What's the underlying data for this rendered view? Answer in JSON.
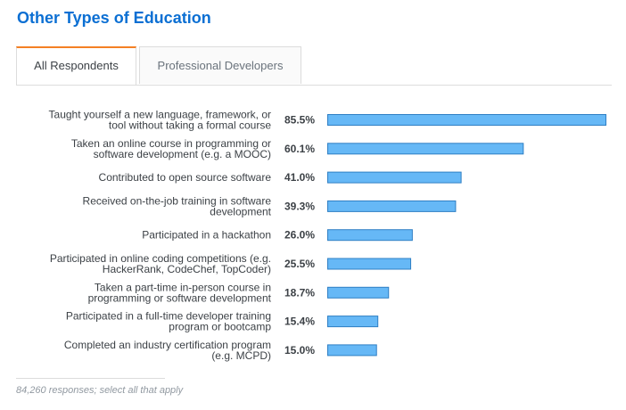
{
  "title": "Other Types of Education",
  "tabs": [
    {
      "label": "All Respondents",
      "active": true
    },
    {
      "label": "Professional Developers",
      "active": false
    }
  ],
  "footnote": "84,260 responses; select all that apply",
  "colors": {
    "title": "#0b6fd3",
    "active_tab_accent": "#f48024",
    "bar_fill": "#66b8f6",
    "bar_stroke": "#2f7fc4"
  },
  "chart_data": {
    "type": "bar",
    "orientation": "horizontal",
    "value_suffix": "%",
    "categories": [
      [
        "Taught yourself a new language, framework, or",
        "tool without taking a formal course"
      ],
      [
        "Taken an online course in programming or",
        "software development (e.g. a MOOC)"
      ],
      [
        "Contributed to open source software"
      ],
      [
        "Received on-the-job training in software",
        "development"
      ],
      [
        "Participated in a hackathon"
      ],
      [
        "Participated in online coding competitions (e.g.",
        "HackerRank, CodeChef, TopCoder)"
      ],
      [
        "Taken a part-time in-person course in",
        "programming or software development"
      ],
      [
        "Participated in a full-time developer training",
        "program or bootcamp"
      ],
      [
        "Completed an industry certification program",
        "(e.g. MCPD)"
      ]
    ],
    "values": [
      85.5,
      60.1,
      41.0,
      39.3,
      26.0,
      25.5,
      18.7,
      15.4,
      15.0
    ],
    "value_labels": [
      "85.5%",
      "60.1%",
      "41.0%",
      "39.3%",
      "26.0%",
      "25.5%",
      "18.7%",
      "15.4%",
      "15.0%"
    ],
    "xlim": [
      0,
      85.5
    ]
  }
}
